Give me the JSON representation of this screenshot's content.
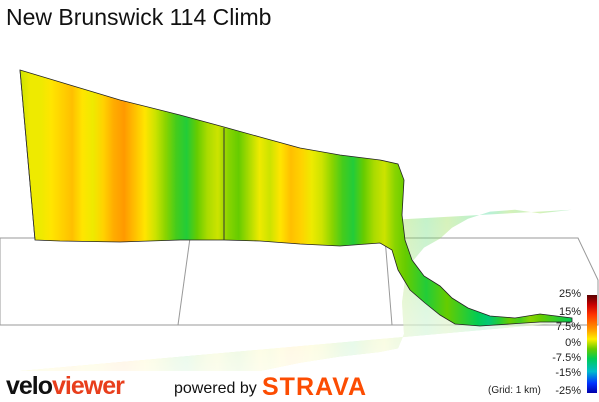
{
  "title": "New Brunswick 114 Climb",
  "chart_data": {
    "type": "area",
    "title": "New Brunswick 114 Climb",
    "xlabel": "",
    "ylabel": "",
    "grid": "1 km",
    "profile_gradient_pct": [
      6,
      7,
      7,
      8,
      9,
      10,
      8,
      7,
      9,
      11,
      12,
      10,
      8,
      6,
      4,
      2,
      1,
      3,
      5,
      6,
      4,
      3,
      5,
      7,
      6,
      8,
      10,
      9,
      7,
      6,
      4,
      2,
      1,
      3,
      5,
      6,
      4,
      3,
      2,
      1,
      2,
      3,
      2,
      1,
      0,
      -2,
      1,
      3,
      2,
      4,
      3,
      2,
      1,
      0
    ]
  },
  "legend": {
    "ticks": [
      "25%",
      "15%",
      "7.5%",
      "0%",
      "-7.5%",
      "-15%",
      "-25%"
    ],
    "grid_note": "(Grid: 1 km)"
  },
  "footer": {
    "brand_part1": "velo",
    "brand_part2": "viewer",
    "powered_by": "powered by",
    "strava": "STRAVA"
  },
  "colors": {
    "grid_plane": "#999999",
    "outline": "#222222",
    "brand_orange": "#e83e1c",
    "strava_orange": "#fc4c02"
  }
}
